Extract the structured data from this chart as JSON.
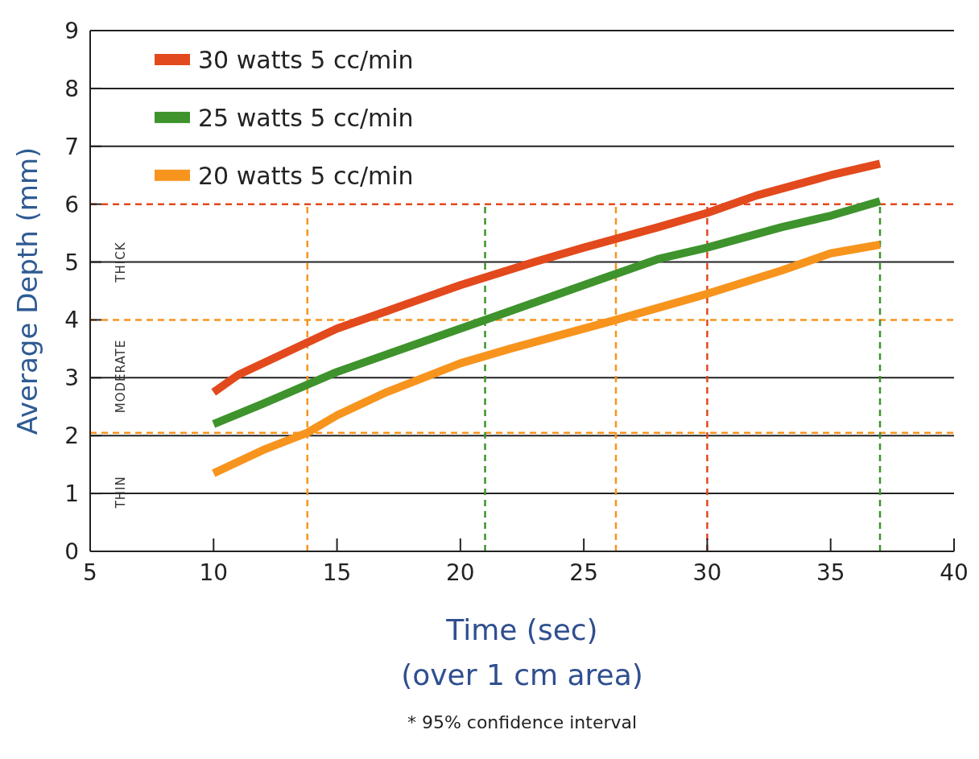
{
  "chart_data": {
    "type": "line",
    "xlabel": "Time (sec)\n(over 1 cm area)",
    "ylabel": "Average Depth (mm)",
    "xlim": [
      5,
      40
    ],
    "xticks": [
      5,
      10,
      15,
      20,
      25,
      30,
      35,
      40
    ],
    "ylim": [
      0,
      9
    ],
    "yticks": [
      0,
      1,
      2,
      3,
      4,
      5,
      6,
      7,
      8,
      9
    ],
    "grid": "y",
    "legend": "top left",
    "line_style": "solid",
    "marker": "none",
    "series": [
      {
        "name": "30 watts 5 cc/min",
        "color": "#e2491d",
        "x": [
          10,
          11,
          13,
          15,
          17,
          20,
          23,
          25,
          28,
          30,
          32,
          35,
          37
        ],
        "values": [
          2.75,
          3.05,
          3.45,
          3.85,
          4.15,
          4.6,
          5.0,
          5.25,
          5.6,
          5.85,
          6.15,
          6.5,
          6.7
        ]
      },
      {
        "name": "25 watts 5 cc/min",
        "color": "#3e932c",
        "x": [
          10,
          12,
          15,
          18,
          21,
          25,
          28,
          30,
          33,
          35,
          37
        ],
        "values": [
          2.2,
          2.55,
          3.1,
          3.55,
          4.0,
          4.6,
          5.05,
          5.25,
          5.6,
          5.8,
          6.05
        ]
      },
      {
        "name": "20 watts 5 cc/min",
        "color": "#f7941d",
        "x": [
          10,
          12,
          13.8,
          15,
          17,
          20,
          22,
          26.3,
          30,
          33,
          35,
          37
        ],
        "values": [
          1.35,
          1.75,
          2.05,
          2.35,
          2.75,
          3.25,
          3.5,
          4.0,
          4.45,
          4.85,
          5.15,
          5.3
        ]
      }
    ],
    "ref_lines": [
      {
        "axis": "y",
        "value": 6,
        "color": "#e2491d",
        "line_style": "dashed"
      },
      {
        "axis": "y",
        "value": 4,
        "color": "#f7941d",
        "line_style": "dashed"
      },
      {
        "axis": "y",
        "value": 2.05,
        "color": "#f7941d",
        "line_style": "dashed"
      },
      {
        "axis": "x",
        "value": 13.8,
        "color": "#f7941d",
        "line_style": "dashed"
      },
      {
        "axis": "x",
        "value": 21,
        "color": "#3e932c",
        "line_style": "dashed"
      },
      {
        "axis": "x",
        "value": 26.3,
        "color": "#f7941d",
        "line_style": "dashed"
      },
      {
        "axis": "x",
        "value": 30,
        "color": "#e2491d",
        "line_style": "dashed"
      },
      {
        "axis": "x",
        "value": 37,
        "color": "#3e932c",
        "line_style": "dashed"
      }
    ],
    "annotations": [
      "THIN",
      "MODERATE",
      "THICK",
      "* 95% confidence interval"
    ]
  }
}
